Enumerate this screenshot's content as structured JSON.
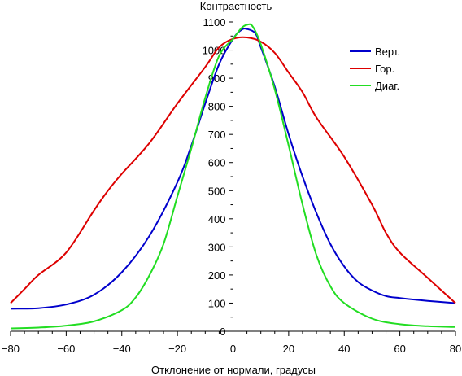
{
  "chart_data": {
    "type": "line",
    "title": "",
    "xlabel": "Отклонение от нормали, градусы",
    "ylabel": "Контрастность",
    "xlim": [
      -80,
      80
    ],
    "ylim": [
      0,
      1100
    ],
    "xticks": [
      -80,
      -60,
      -40,
      -20,
      0,
      20,
      40,
      60,
      80
    ],
    "yticks": [
      0,
      100,
      200,
      300,
      400,
      500,
      600,
      700,
      800,
      900,
      1000,
      1100
    ],
    "grid": false,
    "legend_position": "top-right",
    "series": [
      {
        "name": "Верт.",
        "color": "#0000cc",
        "points": [
          [
            -80,
            80
          ],
          [
            -70,
            82
          ],
          [
            -60,
            95
          ],
          [
            -50,
            130
          ],
          [
            -40,
            210
          ],
          [
            -30,
            340
          ],
          [
            -20,
            530
          ],
          [
            -15,
            660
          ],
          [
            -10,
            810
          ],
          [
            -5,
            950
          ],
          [
            0,
            1040
          ],
          [
            3,
            1072
          ],
          [
            5,
            1075
          ],
          [
            8,
            1060
          ],
          [
            10,
            1010
          ],
          [
            15,
            870
          ],
          [
            20,
            700
          ],
          [
            25,
            550
          ],
          [
            30,
            420
          ],
          [
            35,
            310
          ],
          [
            40,
            230
          ],
          [
            45,
            175
          ],
          [
            50,
            145
          ],
          [
            55,
            125
          ],
          [
            60,
            118
          ],
          [
            70,
            108
          ],
          [
            80,
            100
          ]
        ]
      },
      {
        "name": "Гор.",
        "color": "#dd0000",
        "points": [
          [
            -80,
            100
          ],
          [
            -75,
            150
          ],
          [
            -70,
            200
          ],
          [
            -60,
            280
          ],
          [
            -50,
            430
          ],
          [
            -45,
            500
          ],
          [
            -40,
            560
          ],
          [
            -30,
            670
          ],
          [
            -20,
            810
          ],
          [
            -10,
            940
          ],
          [
            -5,
            1010
          ],
          [
            0,
            1040
          ],
          [
            5,
            1045
          ],
          [
            10,
            1030
          ],
          [
            15,
            990
          ],
          [
            20,
            920
          ],
          [
            25,
            850
          ],
          [
            30,
            760
          ],
          [
            40,
            620
          ],
          [
            50,
            450
          ],
          [
            55,
            350
          ],
          [
            60,
            280
          ],
          [
            70,
            190
          ],
          [
            80,
            100
          ]
        ]
      },
      {
        "name": "Диаг.",
        "color": "#22dd22",
        "points": [
          [
            -80,
            10
          ],
          [
            -70,
            13
          ],
          [
            -60,
            20
          ],
          [
            -50,
            35
          ],
          [
            -40,
            75
          ],
          [
            -35,
            120
          ],
          [
            -30,
            200
          ],
          [
            -25,
            310
          ],
          [
            -20,
            480
          ],
          [
            -15,
            650
          ],
          [
            -10,
            830
          ],
          [
            -5,
            980
          ],
          [
            0,
            1040
          ],
          [
            3,
            1078
          ],
          [
            5,
            1090
          ],
          [
            7,
            1085
          ],
          [
            10,
            1020
          ],
          [
            15,
            860
          ],
          [
            20,
            660
          ],
          [
            25,
            450
          ],
          [
            30,
            270
          ],
          [
            35,
            160
          ],
          [
            40,
            100
          ],
          [
            50,
            45
          ],
          [
            60,
            25
          ],
          [
            70,
            18
          ],
          [
            80,
            15
          ]
        ]
      }
    ]
  }
}
